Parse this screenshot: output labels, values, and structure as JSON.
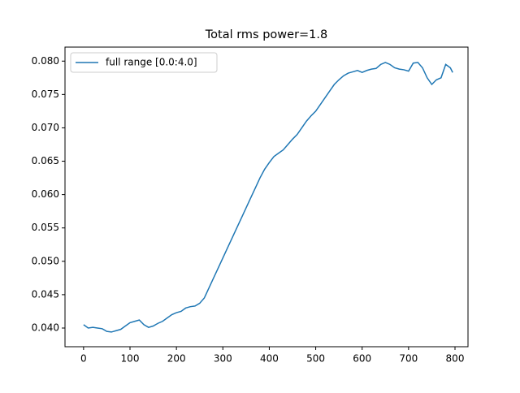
{
  "chart_data": {
    "type": "line",
    "title": "Total rms power=1.8",
    "x": [
      0,
      10,
      20,
      30,
      40,
      50,
      60,
      70,
      80,
      90,
      100,
      110,
      120,
      130,
      140,
      150,
      160,
      170,
      180,
      190,
      200,
      210,
      220,
      230,
      240,
      250,
      260,
      270,
      280,
      290,
      300,
      310,
      320,
      330,
      340,
      350,
      360,
      370,
      380,
      390,
      400,
      410,
      420,
      430,
      440,
      450,
      460,
      470,
      480,
      490,
      500,
      510,
      520,
      530,
      540,
      550,
      560,
      570,
      580,
      590,
      600,
      610,
      620,
      630,
      640,
      650,
      660,
      670,
      680,
      690,
      700,
      710,
      720,
      730,
      740,
      750,
      760,
      770,
      780,
      790,
      795
    ],
    "series": [
      {
        "name": "full range [0.0:4.0]",
        "color": "#1f77b4",
        "values": [
          0.0405,
          0.04,
          0.0401,
          0.04,
          0.0399,
          0.0395,
          0.0394,
          0.0396,
          0.0398,
          0.0403,
          0.0408,
          0.041,
          0.0412,
          0.0405,
          0.0401,
          0.0403,
          0.0407,
          0.041,
          0.0415,
          0.042,
          0.0423,
          0.0425,
          0.043,
          0.0432,
          0.0433,
          0.0437,
          0.0445,
          0.046,
          0.0475,
          0.049,
          0.0505,
          0.052,
          0.0535,
          0.055,
          0.0565,
          0.058,
          0.0595,
          0.061,
          0.0625,
          0.0638,
          0.0648,
          0.0657,
          0.0662,
          0.0667,
          0.0675,
          0.0683,
          0.069,
          0.07,
          0.071,
          0.0718,
          0.0725,
          0.0735,
          0.0745,
          0.0755,
          0.0765,
          0.0772,
          0.0778,
          0.0782,
          0.0784,
          0.0786,
          0.0783,
          0.0786,
          0.0788,
          0.0789,
          0.0795,
          0.0798,
          0.0795,
          0.079,
          0.0788,
          0.0787,
          0.0785,
          0.0797,
          0.0798,
          0.079,
          0.0775,
          0.0765,
          0.0772,
          0.0775,
          0.0795,
          0.079,
          0.0783
        ]
      }
    ],
    "xlim": [
      -40,
      828
    ],
    "xticks": [
      0,
      100,
      200,
      300,
      400,
      500,
      600,
      700,
      800
    ],
    "ylim": [
      0.0372,
      0.0821
    ],
    "yticks": [
      {
        "value": 0.04,
        "label": "0.040"
      },
      {
        "value": 0.045,
        "label": "0.045"
      },
      {
        "value": 0.05,
        "label": "0.050"
      },
      {
        "value": 0.055,
        "label": "0.055"
      },
      {
        "value": 0.06,
        "label": "0.060"
      },
      {
        "value": 0.065,
        "label": "0.065"
      },
      {
        "value": 0.07,
        "label": "0.070"
      },
      {
        "value": 0.075,
        "label": "0.075"
      },
      {
        "value": 0.08,
        "label": "0.080"
      }
    ],
    "legend": "upper left"
  }
}
